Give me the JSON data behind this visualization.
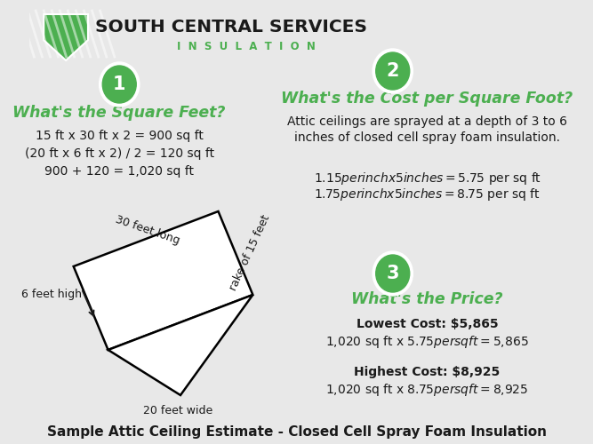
{
  "bg_color": "#e8e8e8",
  "title_company": "SOUTH CENTRAL SERVICES",
  "title_sub": "INSULATION",
  "company_color": "#1a1a1a",
  "green_color": "#4CAF50",
  "dark_green": "#2e7d32",
  "section1_header": "What's the Square Feet?",
  "section1_lines": [
    "15 ft x 30 ft x 2 = 900 sq ft",
    "(20 ft x 6 ft x 2) / 2 = 120 sq ft",
    "900 + 120 = 1,020 sq ft"
  ],
  "section2_header": "What's the Cost per Square Foot?",
  "section2_desc1": "Attic ceilings are sprayed at a depth of 3 to 6",
  "section2_desc2": "inches of closed cell spray foam insulation.",
  "section2_line1": "$1.15 per inch x 5 inches = $5.75 per sq ft",
  "section2_line2": "$1.75 per inch x 5 inches = $8.75 per sq ft",
  "section3_header": "What's the Price?",
  "section3_low_bold": "Lowest Cost: $5,865",
  "section3_low_detail": "1,020 sq ft x $5.75 per sq ft = $5,865",
  "section3_high_bold": "Highest Cost: $8,925",
  "section3_high_detail": "1,020 sq ft x $8.75 per sq ft = $8,925",
  "footer": "Sample Attic Ceiling Estimate - Closed Cell Spray Foam Insulation",
  "diagram_label_top": "30 feet long",
  "diagram_label_side": "rake of 15 feet",
  "diagram_label_left": "6 feet high",
  "diagram_label_bottom": "20 feet wide"
}
